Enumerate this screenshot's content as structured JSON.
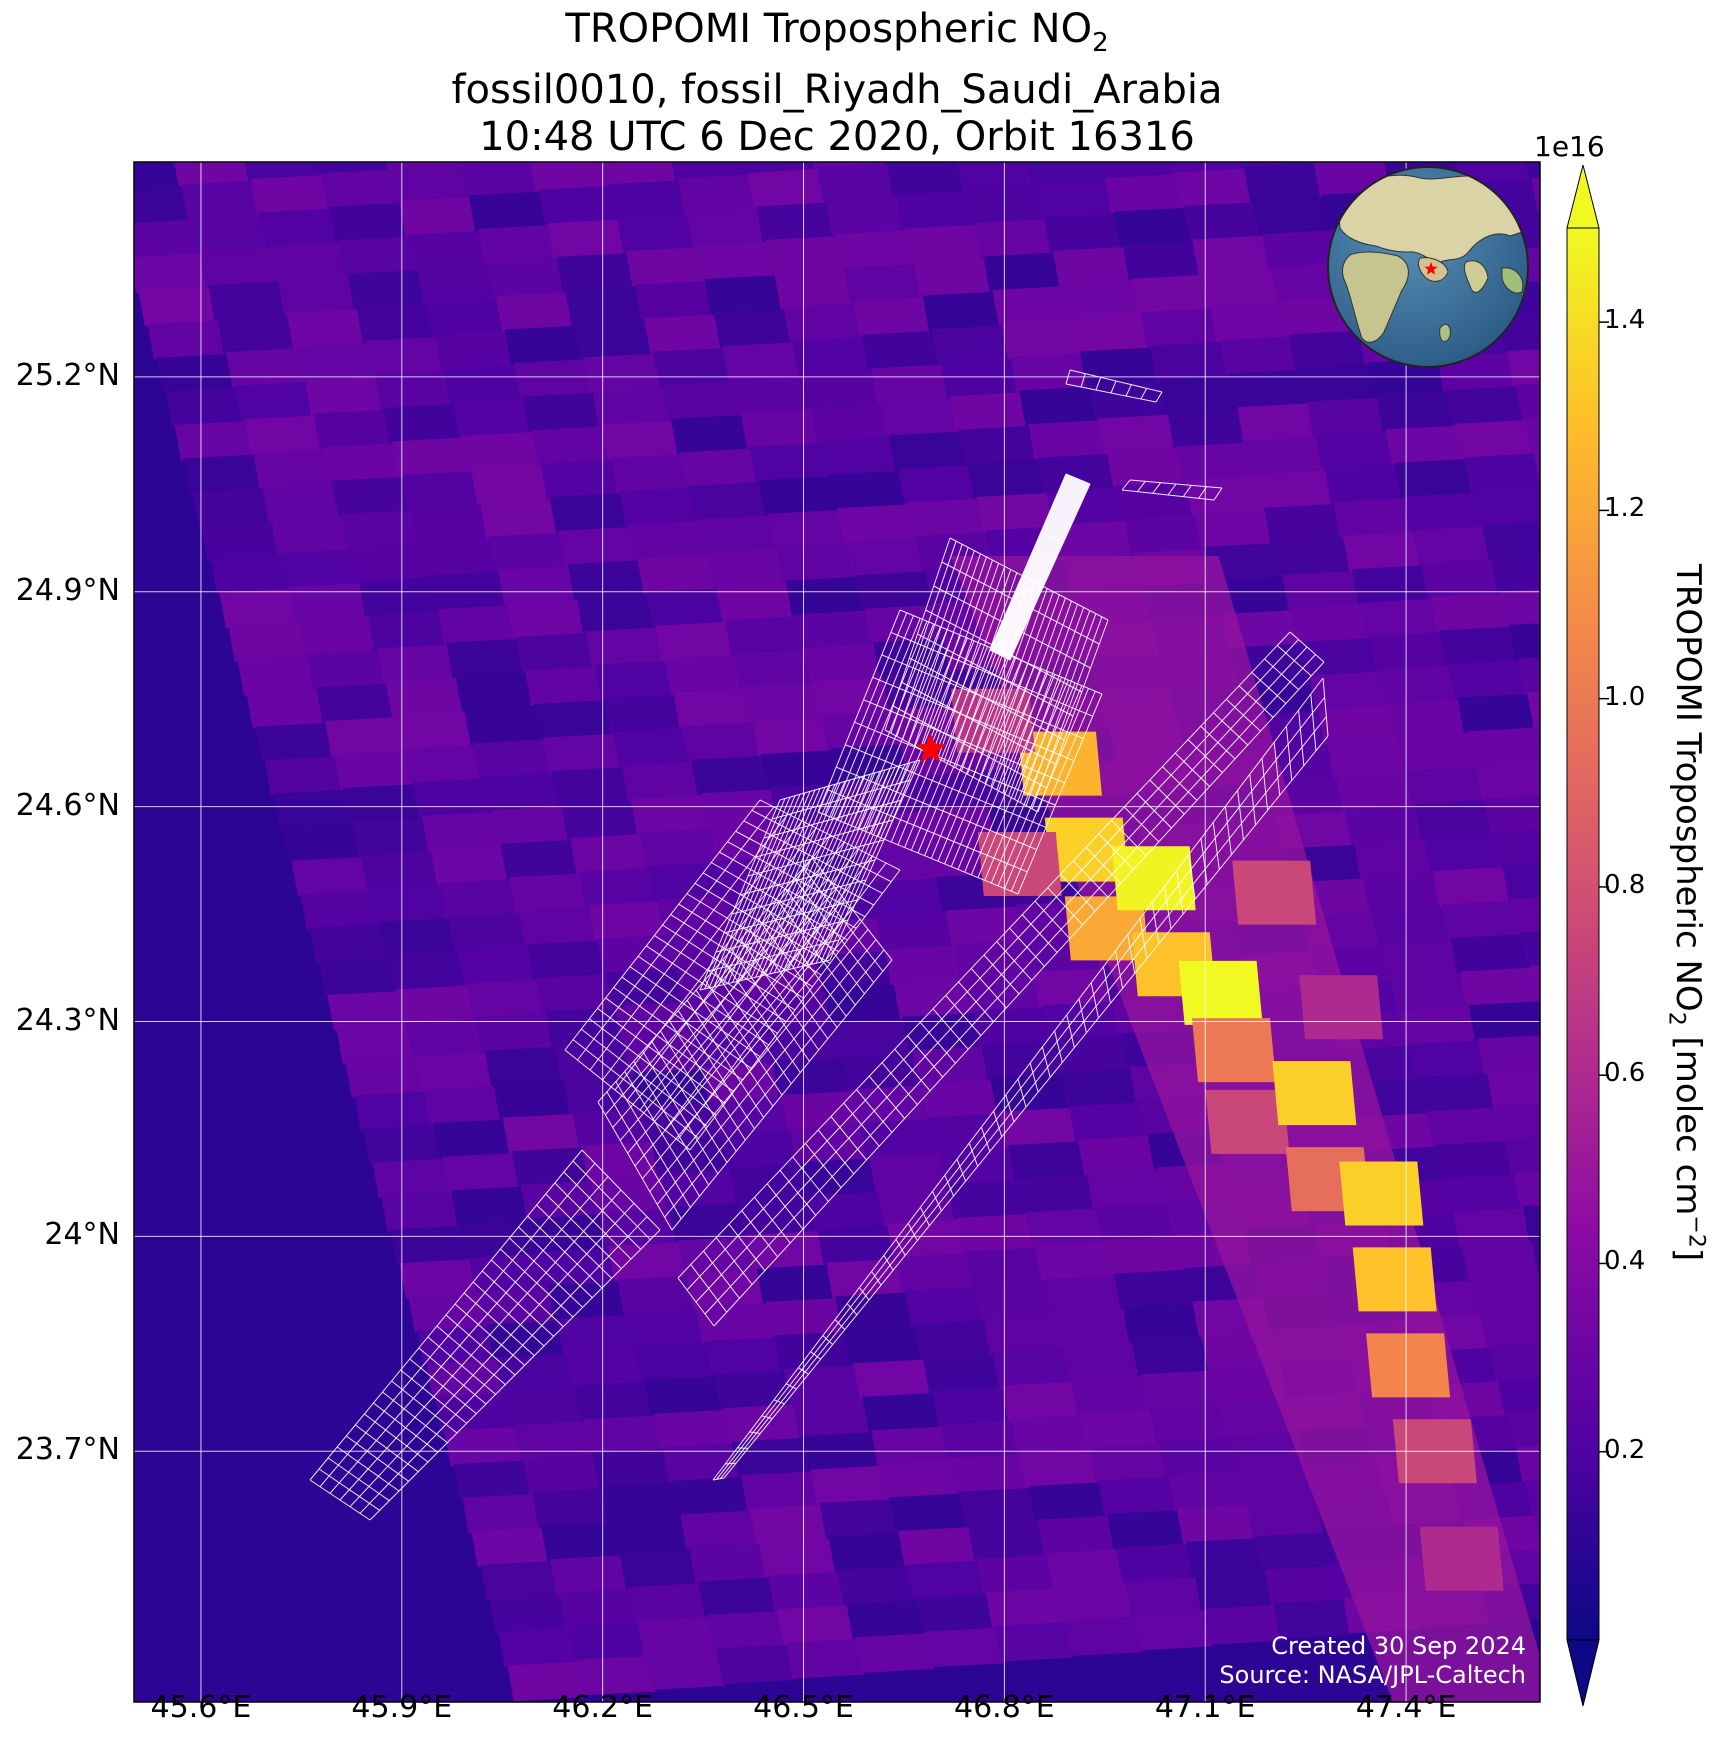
{
  "title": {
    "line1_main": "TROPOMI Tropospheric NO",
    "line1_sub": "2",
    "line2": "fossil0010, fossil_Riyadh_Saudi_Arabia",
    "line3": "10:48 UTC 6 Dec 2020, Orbit 16316"
  },
  "map": {
    "extent": {
      "lon_min": 45.5,
      "lon_max": 47.6,
      "lat_min": 23.35,
      "lat_max": 25.5
    },
    "lon_ticks": [
      "45.6°E",
      "45.9°E",
      "46.2°E",
      "46.5°E",
      "46.8°E",
      "47.1°E",
      "47.4°E"
    ],
    "lon_tick_values": [
      45.6,
      45.9,
      46.2,
      46.5,
      46.8,
      47.1,
      47.4
    ],
    "lat_ticks": [
      "25.2°N",
      "24.9°N",
      "24.6°N",
      "24.3°N",
      "24°N",
      "23.7°N"
    ],
    "lat_tick_values": [
      25.2,
      24.9,
      24.6,
      24.3,
      24.0,
      23.7
    ],
    "gridlines": true,
    "gridline_color": "#ffffff",
    "source_marker": {
      "lon": 46.69,
      "lat": 24.68,
      "symbol": "star",
      "color": "#ff0000"
    },
    "background_color": "#2d0594",
    "plume_cells": [
      {
        "lon": 46.88,
        "lat": 24.66,
        "value": 1.25
      },
      {
        "lon": 46.92,
        "lat": 24.54,
        "value": 1.35
      },
      {
        "lon": 46.95,
        "lat": 24.43,
        "value": 1.2
      },
      {
        "lon": 47.02,
        "lat": 24.5,
        "value": 1.48
      },
      {
        "lon": 47.05,
        "lat": 24.38,
        "value": 1.3
      },
      {
        "lon": 47.12,
        "lat": 24.34,
        "value": 1.5
      },
      {
        "lon": 47.14,
        "lat": 24.26,
        "value": 1.0
      },
      {
        "lon": 47.16,
        "lat": 24.16,
        "value": 0.75
      },
      {
        "lon": 47.26,
        "lat": 24.2,
        "value": 1.35
      },
      {
        "lon": 47.28,
        "lat": 24.08,
        "value": 0.95
      },
      {
        "lon": 47.36,
        "lat": 24.06,
        "value": 1.35
      },
      {
        "lon": 47.38,
        "lat": 23.94,
        "value": 1.3
      },
      {
        "lon": 47.4,
        "lat": 23.82,
        "value": 1.05
      },
      {
        "lon": 47.44,
        "lat": 23.7,
        "value": 0.75
      },
      {
        "lon": 47.48,
        "lat": 23.55,
        "value": 0.6
      },
      {
        "lon": 46.82,
        "lat": 24.52,
        "value": 0.75
      },
      {
        "lon": 46.78,
        "lat": 24.72,
        "value": 0.65
      },
      {
        "lon": 47.2,
        "lat": 24.48,
        "value": 0.75
      },
      {
        "lon": 47.3,
        "lat": 24.32,
        "value": 0.6
      }
    ]
  },
  "inset_globe": {
    "marker_color": "#ff0000"
  },
  "colorbar": {
    "exponent_label": "1e16",
    "ticks": [
      "0.2",
      "0.4",
      "0.6",
      "0.8",
      "1.0",
      "1.2",
      "1.4"
    ],
    "tick_values": [
      0.2,
      0.4,
      0.6,
      0.8,
      1.0,
      1.2,
      1.4
    ],
    "range": [
      0.0,
      1.5
    ],
    "extend": "both",
    "cmap_colors": [
      "#0d0887",
      "#5302a3",
      "#8b0aa5",
      "#b83289",
      "#db5c68",
      "#f48849",
      "#febd2a",
      "#f0f921"
    ],
    "label_main": "TROPOMI Tropospheric NO",
    "label_sub": "2",
    "label_units": " [molec cm",
    "label_sup": "−2",
    "label_end": "]"
  },
  "credits": {
    "created": "Created 30 Sep 2024",
    "source": "Source: NASA/JPL-Caltech"
  }
}
